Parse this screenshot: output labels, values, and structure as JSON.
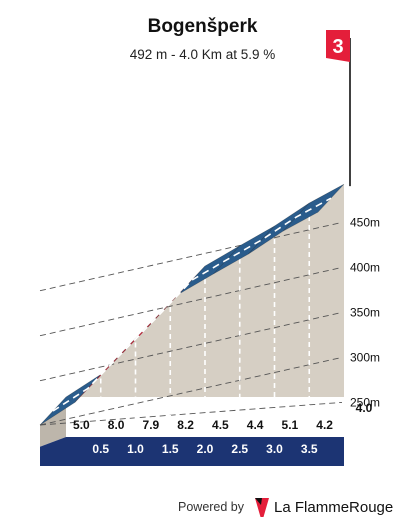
{
  "header": {
    "title": "Bogenšperk",
    "subtitle": "492 m - 4.0 Km at 5.9 %"
  },
  "flag": {
    "label": "3",
    "color": "#e41e3a"
  },
  "footer": {
    "powered_label": "Powered by",
    "brand": "La FlammeRouge"
  },
  "colors": {
    "steep": "#e41e3a",
    "moderate": "#2a5c8c",
    "body": "#d6cfc4",
    "base": "#1c3473",
    "base_side": "#bdb6ab"
  },
  "chart_data": {
    "type": "area",
    "title": "Bogenšperk",
    "subtitle": "492 m - 4.0 Km at 5.9 %",
    "xlabel": "",
    "ylabel": "",
    "x_unit": "km",
    "y_unit": "m",
    "start_elevation": 256,
    "km_marks": [
      "0.5",
      "1.0",
      "1.5",
      "2.0",
      "2.5",
      "3.0",
      "3.5",
      "4.0"
    ],
    "segments": [
      {
        "from_km": 0.0,
        "to_km": 0.5,
        "gradient": 5.0,
        "label": "5.0"
      },
      {
        "from_km": 0.5,
        "to_km": 1.0,
        "gradient": 8.0,
        "label": "8.0"
      },
      {
        "from_km": 1.0,
        "to_km": 1.5,
        "gradient": 7.9,
        "label": "7.9"
      },
      {
        "from_km": 1.5,
        "to_km": 2.0,
        "gradient": 8.2,
        "label": "8.2"
      },
      {
        "from_km": 2.0,
        "to_km": 2.5,
        "gradient": 4.5,
        "label": "4.5"
      },
      {
        "from_km": 2.5,
        "to_km": 3.0,
        "gradient": 4.4,
        "label": "4.4"
      },
      {
        "from_km": 3.0,
        "to_km": 3.5,
        "gradient": 5.1,
        "label": "5.1"
      },
      {
        "from_km": 3.5,
        "to_km": 4.0,
        "gradient": 4.2,
        "label": "4.2"
      }
    ],
    "y_ticks": [
      {
        "value": 250,
        "label": "250m"
      },
      {
        "value": 300,
        "label": "300m"
      },
      {
        "value": 350,
        "label": "350m"
      },
      {
        "value": 400,
        "label": "400m"
      },
      {
        "value": 450,
        "label": "450m"
      }
    ],
    "steep_threshold": 6,
    "grid": true
  }
}
